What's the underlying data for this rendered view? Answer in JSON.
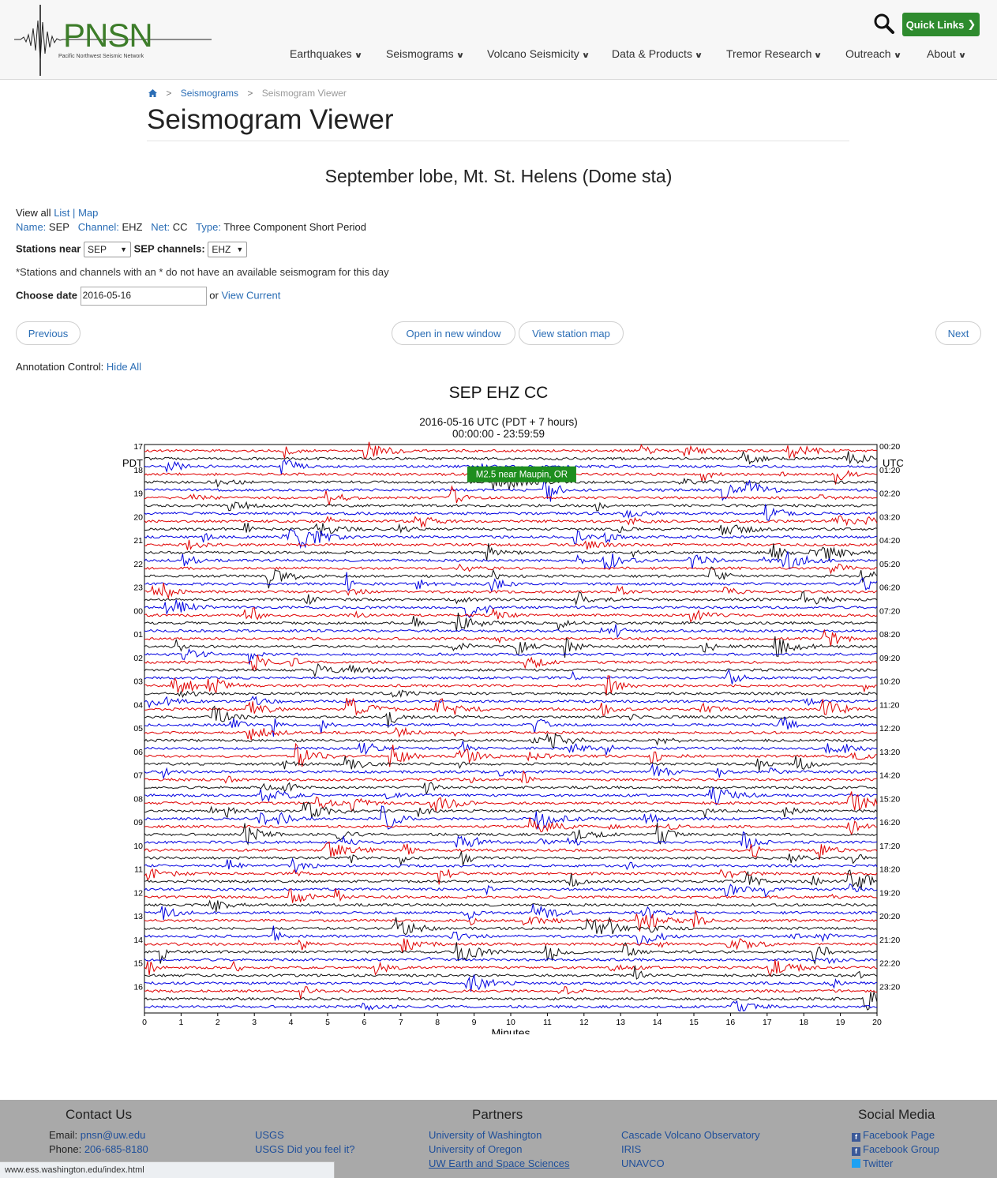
{
  "header": {
    "logo_text": "PNSN",
    "logo_sub": "Pacific Northwest Seismic Network",
    "quick_links": "Quick Links",
    "nav": [
      {
        "label": "Earthquakes"
      },
      {
        "label": "Seismograms"
      },
      {
        "label": "Volcano Seismicity"
      },
      {
        "label": "Data & Products"
      },
      {
        "label": "Tremor Research"
      },
      {
        "label": "Outreach"
      },
      {
        "label": "About"
      }
    ]
  },
  "breadcrumb": {
    "home": "home",
    "section": "Seismograms",
    "current": "Seismogram Viewer",
    "sep": ">"
  },
  "page_title": "Seismogram Viewer",
  "station_title": "September lobe, Mt. St. Helens (Dome sta)",
  "view_all": {
    "label": "View all",
    "list": "List",
    "divider": "|",
    "map": "Map"
  },
  "station": {
    "name_label": "Name:",
    "name": "SEP",
    "channel_label": "Channel:",
    "channel": "EHZ",
    "net_label": "Net:",
    "net": "CC",
    "type_label": "Type:",
    "type": "Three Component Short Period"
  },
  "controls": {
    "stations_near_label": "Stations near",
    "stations_near_value": "SEP",
    "channels_label": "SEP channels:",
    "channels_value": "EHZ",
    "note": "*Stations and channels with an * do not have an available seismogram for this day",
    "choose_date_label": "Choose date",
    "date_value": "2016-05-16",
    "or": "or",
    "view_current": "View Current"
  },
  "buttons": {
    "previous": "Previous",
    "open_new": "Open in new window",
    "station_map": "View station map",
    "next": "Next"
  },
  "annotation": {
    "label": "Annotation Control:",
    "hide_all": "Hide All"
  },
  "chart_data": {
    "type": "line",
    "title": "SEP EHZ CC",
    "subtitle_1": "2016-05-16 UTC (PDT + 7 hours)",
    "subtitle_2": "00:00:00 - 23:59:59",
    "xlabel": "Minutes",
    "x_ticks": [
      "0",
      "1",
      "2",
      "3",
      "4",
      "5",
      "6",
      "7",
      "8",
      "9",
      "10",
      "11",
      "12",
      "13",
      "14",
      "15",
      "16",
      "17",
      "18",
      "19",
      "20"
    ],
    "xlim": [
      0,
      20
    ],
    "left_axis_label": "PDT",
    "right_axis_label": "UTC",
    "left_hours": [
      "17",
      "18",
      "19",
      "20",
      "21",
      "22",
      "23",
      "00",
      "01",
      "02",
      "03",
      "04",
      "05",
      "06",
      "07",
      "08",
      "09",
      "10",
      "11",
      "12",
      "13",
      "14",
      "15",
      "16"
    ],
    "right_times": [
      "00:20",
      "01:20",
      "02:20",
      "03:20",
      "04:20",
      "05:20",
      "06:20",
      "07:20",
      "08:20",
      "09:20",
      "10:20",
      "11:20",
      "12:20",
      "13:20",
      "14:20",
      "15:20",
      "16:20",
      "17:20",
      "18:20",
      "19:20",
      "20:20",
      "21:20",
      "22:20",
      "23:20"
    ],
    "trace_minutes": 20,
    "trace_count": 72,
    "trace_colors": [
      "#e00000",
      "#111111",
      "#0000e0"
    ],
    "annotations": [
      {
        "label": "M2.5 near Maupin, OR",
        "trace": 3,
        "minute": 10.3,
        "color": "#1e8e1e"
      }
    ]
  },
  "footer": {
    "contact_h": "Contact Us",
    "email_label": "Email:",
    "email": "pnsn@uw.edu",
    "phone_label": "Phone:",
    "phone": "206-685-8180",
    "partners_h": "Partners",
    "partners_col1": [
      "USGS",
      "USGS Did you feel it?"
    ],
    "partners_col2": [
      "University of Washington",
      "University of Oregon",
      "UW Earth and Space Sciences"
    ],
    "partners_col3": [
      "Cascade Volcano Observatory",
      "IRIS",
      "UNAVCO"
    ],
    "social_h": "Social Media",
    "social": [
      "Facebook Page",
      "Facebook Group",
      "Twitter"
    ]
  },
  "status_url": "www.ess.washington.edu/index.html"
}
